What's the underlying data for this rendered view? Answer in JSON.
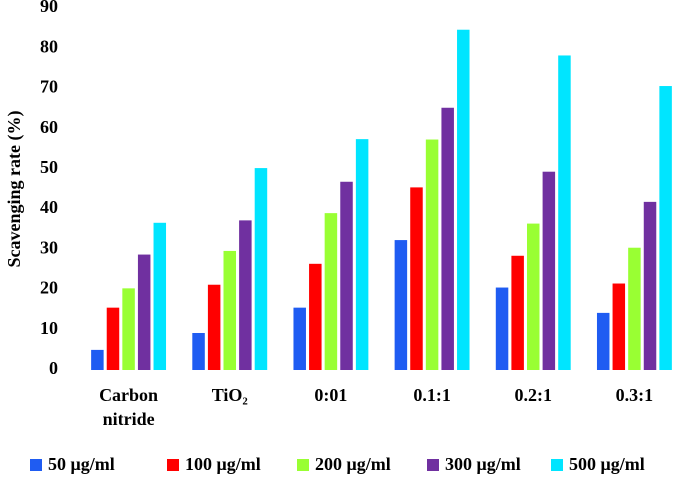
{
  "chart_data": {
    "type": "bar",
    "y_label": "Scavenging rate (%)",
    "categories": [
      "Carbon nitride",
      "TiO₂",
      "0:01",
      "0.1:1",
      "0.2:1",
      "0.3:1"
    ],
    "series": [
      {
        "name": "50 μg/ml",
        "color": "#1f5cf2",
        "values": [
          5,
          9.2,
          15.5,
          32.3,
          20.5,
          14.2
        ]
      },
      {
        "name": "100 μg/ml",
        "color": "#ff0000",
        "values": [
          15.5,
          21.2,
          26.4,
          45.4,
          28.4,
          21.5
        ]
      },
      {
        "name": "200 μg/ml",
        "color": "#99ff33",
        "values": [
          20.3,
          29.6,
          39,
          57.3,
          36.4,
          30.4
        ]
      },
      {
        "name": "300 μg/ml",
        "color": "#7030a0",
        "values": [
          28.7,
          37.2,
          46.8,
          65.2,
          49.3,
          41.8
        ]
      },
      {
        "name": "500 μg/ml",
        "color": "#00e5ff",
        "values": [
          36.6,
          50.2,
          57.4,
          84.6,
          78.2,
          70.6
        ]
      }
    ],
    "ylim": [
      0,
      90
    ],
    "yticks": [
      0,
      10,
      20,
      30,
      40,
      50,
      60,
      70,
      80,
      90
    ]
  }
}
